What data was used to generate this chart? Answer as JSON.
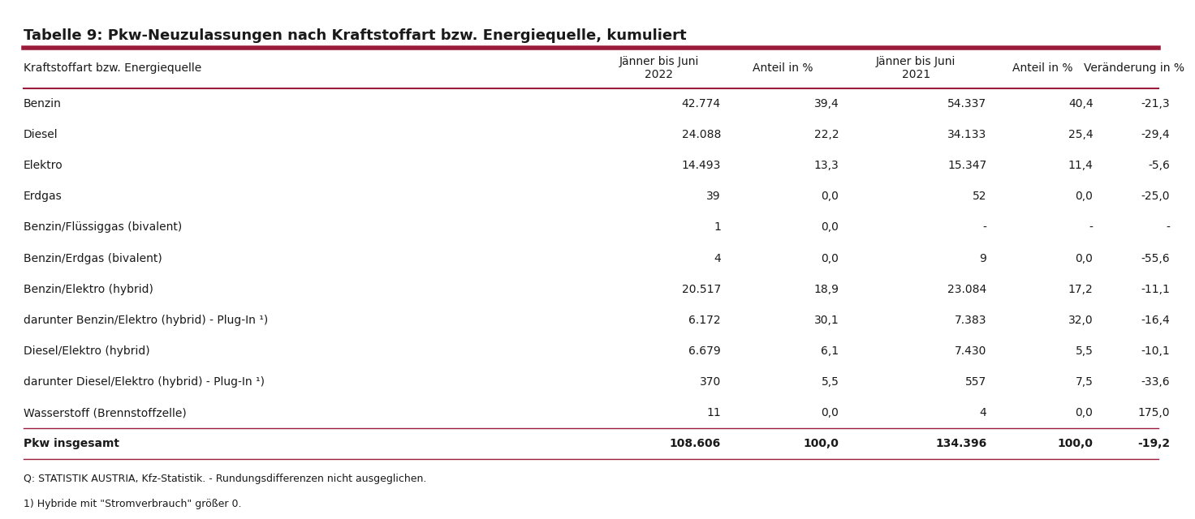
{
  "title": "Tabelle 9: Pkw-Neuzulassungen nach Kraftstoffart bzw. Energiequelle, kumuliert",
  "col_headers": [
    "Kraftstoffart bzw. Energiequelle",
    "Jänner bis Juni\n2022",
    "Anteil in %",
    "Jänner bis Juni\n2021",
    "Anteil in %",
    "Veränderung in %"
  ],
  "rows": [
    [
      "Benzin",
      "42.774",
      "39,4",
      "54.337",
      "40,4",
      "-21,3"
    ],
    [
      "Diesel",
      "24.088",
      "22,2",
      "34.133",
      "25,4",
      "-29,4"
    ],
    [
      "Elektro",
      "14.493",
      "13,3",
      "15.347",
      "11,4",
      "-5,6"
    ],
    [
      "Erdgas",
      "39",
      "0,0",
      "52",
      "0,0",
      "-25,0"
    ],
    [
      "Benzin/Flüssiggas (bivalent)",
      "1",
      "0,0",
      "-",
      "-",
      "-"
    ],
    [
      "Benzin/Erdgas (bivalent)",
      "4",
      "0,0",
      "9",
      "0,0",
      "-55,6"
    ],
    [
      "Benzin/Elektro (hybrid)",
      "20.517",
      "18,9",
      "23.084",
      "17,2",
      "-11,1"
    ],
    [
      "darunter Benzin/Elektro (hybrid) - Plug-In ¹)",
      "6.172",
      "30,1",
      "7.383",
      "32,0",
      "-16,4"
    ],
    [
      "Diesel/Elektro (hybrid)",
      "6.679",
      "6,1",
      "7.430",
      "5,5",
      "-10,1"
    ],
    [
      "darunter Diesel/Elektro (hybrid) - Plug-In ¹)",
      "370",
      "5,5",
      "557",
      "7,5",
      "-33,6"
    ],
    [
      "Wasserstoff (Brennstoffzelle)",
      "11",
      "0,0",
      "4",
      "0,0",
      "175,0"
    ],
    [
      "Pkw insgesamt",
      "108.606",
      "100,0",
      "134.396",
      "100,0",
      "-19,2"
    ]
  ],
  "footnotes": [
    "Q: STATISTIK AUSTRIA, Kfz-Statistik. - Rundungsdifferenzen nicht ausgeglichen.",
    "1) Hybride mit \"Stromverbrauch\" größer 0."
  ],
  "title_color": "#1a1a1a",
  "dark_red": "#9b1c3a",
  "text_color": "#1a1a1a",
  "bg_color": "#ffffff",
  "title_fontsize": 13,
  "header_fontsize": 10,
  "cell_fontsize": 10,
  "footnote_fontsize": 9
}
